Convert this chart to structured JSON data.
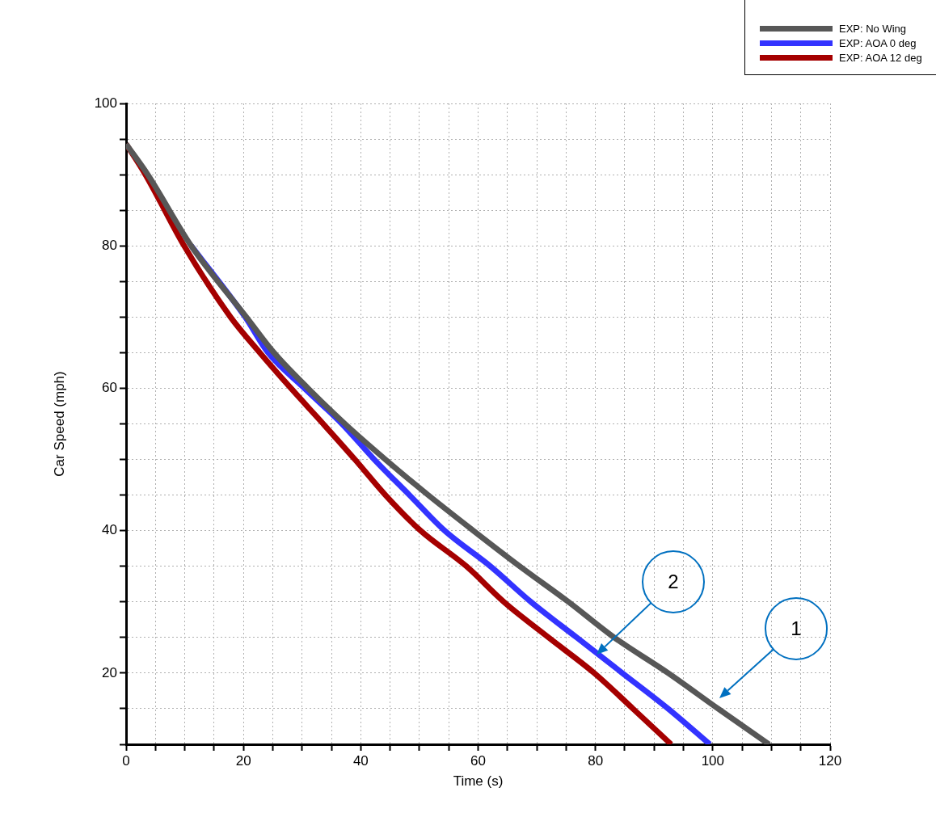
{
  "chart_data": {
    "type": "line",
    "xlabel": "Time (s)",
    "ylabel": "Car Speed (mph)",
    "xlim": [
      0,
      120
    ],
    "ylim": [
      10,
      100
    ],
    "xticks": [
      0,
      {
        "value": 5,
        "label": null
      },
      {
        "value": 10,
        "label": null
      },
      {
        "value": 15,
        "label": null
      },
      20,
      {
        "value": 25,
        "label": null
      },
      {
        "value": 30,
        "label": null
      },
      {
        "value": 35,
        "label": null
      },
      40,
      {
        "value": 45,
        "label": null
      },
      {
        "value": 50,
        "label": null
      },
      {
        "value": 55,
        "label": null
      },
      60,
      {
        "value": 65,
        "label": null
      },
      {
        "value": 70,
        "label": null
      },
      {
        "value": 75,
        "label": null
      },
      80,
      {
        "value": 85,
        "label": null
      },
      {
        "value": 90,
        "label": null
      },
      {
        "value": 95,
        "label": null
      },
      100,
      {
        "value": 105,
        "label": null
      },
      {
        "value": 110,
        "label": null
      },
      {
        "value": 115,
        "label": null
      },
      120
    ],
    "yticks": [
      {
        "value": 10,
        "label": null
      },
      {
        "value": 15,
        "label": null
      },
      20,
      {
        "value": 25,
        "label": null
      },
      {
        "value": 30,
        "label": null
      },
      {
        "value": 35,
        "label": null
      },
      40,
      {
        "value": 45,
        "label": null
      },
      {
        "value": 50,
        "label": null
      },
      {
        "value": 55,
        "label": null
      },
      60,
      {
        "value": 65,
        "label": null
      },
      {
        "value": 70,
        "label": null
      },
      {
        "value": 75,
        "label": null
      },
      80,
      {
        "value": 85,
        "label": null
      },
      {
        "value": 90,
        "label": null
      },
      {
        "value": 95,
        "label": null
      },
      100
    ],
    "grid": true,
    "legend": "top right",
    "marker": "none",
    "line_style": "solid",
    "series": [
      {
        "name": "EXP: No Wing",
        "color": "#575757",
        "x": [
          0,
          3.7,
          11.1,
          20.5,
          25.2,
          31,
          37.3,
          44.2,
          51.5,
          59.2,
          67.1,
          75.4,
          83.2,
          92.4,
          100.9,
          109.6
        ],
        "values": [
          94.3,
          90,
          80,
          70,
          65,
          60,
          55,
          50,
          45,
          40,
          35,
          30,
          25,
          20,
          15,
          10
        ]
      },
      {
        "name": "EXP: AOA 0 deg",
        "color": "#3333ff",
        "x": [
          11.1,
          20.3,
          24.2,
          30.4,
          36.8,
          42.3,
          48.3,
          54.3,
          62.1,
          69,
          76.8,
          84.6,
          92.4,
          99.5
        ],
        "values": [
          80,
          70,
          65,
          60,
          55,
          50,
          45,
          40,
          35,
          30,
          25,
          20,
          15,
          10
        ]
      },
      {
        "name": "EXP: AOA 12 deg",
        "color": "#a50000",
        "x": [
          0,
          3.3,
          9.9,
          17.8,
          22.8,
          28.1,
          33.6,
          39,
          44.2,
          50.2,
          58,
          64.4,
          72,
          79.8,
          86.4,
          92.9
        ],
        "values": [
          94.3,
          90,
          80,
          70,
          65,
          60,
          55,
          50,
          45,
          40,
          35,
          30,
          25,
          20,
          15,
          10
        ]
      }
    ],
    "annotations": [
      "1",
      "2"
    ]
  }
}
